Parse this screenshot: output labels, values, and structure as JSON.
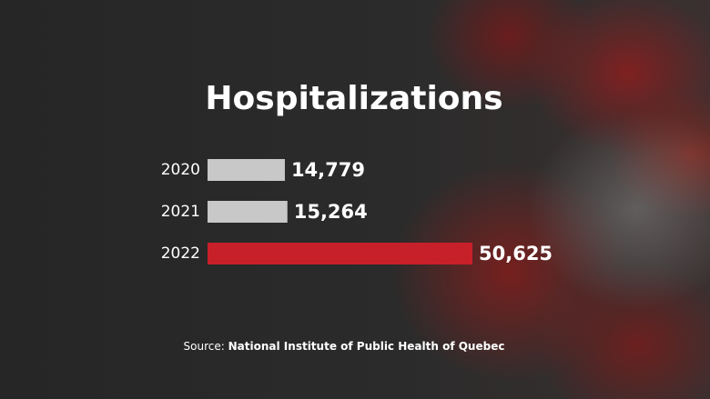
{
  "chart_data": {
    "type": "hbar",
    "title": "Hospitalizations",
    "categories": [
      "2020",
      "2021",
      "2022"
    ],
    "values": [
      14779,
      15264,
      50625
    ],
    "value_labels": [
      "14,779",
      "15,264",
      "50,625"
    ],
    "colors": [
      "#c8c8c8",
      "#c8c8c8",
      "#c8202a"
    ],
    "source_label": "Source:",
    "source": "National Institute of Public Health of Quebec"
  }
}
